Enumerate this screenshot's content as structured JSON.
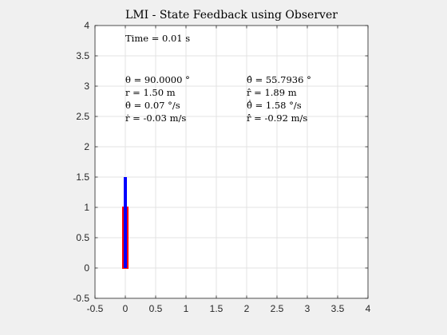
{
  "chart_data": {
    "type": "scatter",
    "title": "LMI - State Feedback using Observer",
    "xlabel": "",
    "ylabel": "",
    "xlim": [
      -0.5,
      4
    ],
    "ylim": [
      -0.5,
      4
    ],
    "grid": true,
    "x_ticks": [
      "-0.5",
      "0",
      "0.5",
      "1",
      "1.5",
      "2",
      "2.5",
      "3",
      "3.5",
      "4"
    ],
    "y_ticks": [
      "-0.5",
      "0",
      "0.5",
      "1",
      "1.5",
      "2",
      "2.5",
      "3",
      "3.5",
      "4"
    ],
    "series": [
      {
        "x": [
          0,
          0
        ],
        "y": [
          0,
          1.0
        ],
        "color": "#ff0000"
      },
      {
        "x": [
          0,
          0
        ],
        "y": [
          0,
          1.5
        ],
        "color": "#0000ff"
      }
    ],
    "annotations": {
      "time": "Time = 0.01 s",
      "true_state": [
        "θ = 90.0000 °",
        "r = 1.50 m",
        "θ̇ = 0.07 °/s",
        "ṙ = -0.03 m/s"
      ],
      "estimated_state": [
        "θ̂ = 55.7936 °",
        "r̂ = 1.89 m",
        "θ̂̇ = 1.58 °/s",
        "r̂̇ = -0.92 m/s"
      ]
    }
  }
}
